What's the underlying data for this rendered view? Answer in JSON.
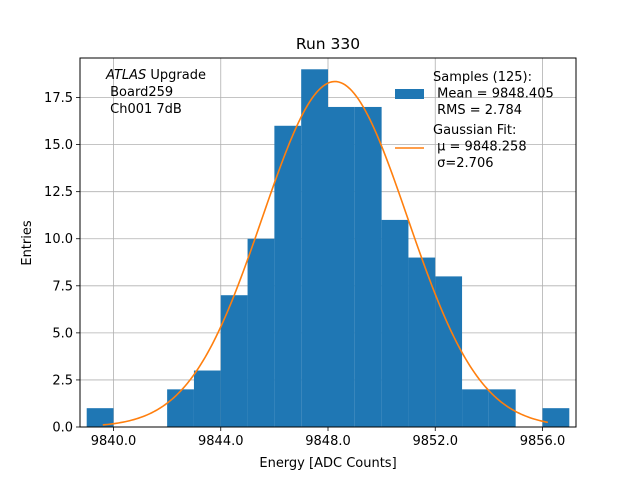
{
  "chart_data": {
    "type": "bar",
    "title": "Run 330",
    "xlabel": "Energy [ADC Counts]",
    "ylabel": "Entries",
    "xlim": [
      9838.75,
      9857.25
    ],
    "ylim": [
      0,
      19.6
    ],
    "xticks": [
      9840.0,
      9844.0,
      9848.0,
      9852.0,
      9856.0
    ],
    "xtick_labels": [
      "9840.0",
      "9844.0",
      "9848.0",
      "9852.0",
      "9856.0"
    ],
    "yticks": [
      0,
      2.5,
      5,
      7.5,
      10,
      12.5,
      15,
      17.5
    ],
    "ytick_labels": [
      "0.0",
      "2.5",
      "5.0",
      "7.5",
      "10.0",
      "12.5",
      "15.0",
      "17.5"
    ],
    "grid": true,
    "histogram": {
      "bin_width": 1.0,
      "bins": [
        {
          "x": 9839.0,
          "count": 1
        },
        {
          "x": 9842.0,
          "count": 2
        },
        {
          "x": 9843.0,
          "count": 3
        },
        {
          "x": 9844.0,
          "count": 7
        },
        {
          "x": 9845.0,
          "count": 10
        },
        {
          "x": 9846.0,
          "count": 16
        },
        {
          "x": 9847.0,
          "count": 19
        },
        {
          "x": 9848.0,
          "count": 17
        },
        {
          "x": 9849.0,
          "count": 17
        },
        {
          "x": 9850.0,
          "count": 11
        },
        {
          "x": 9851.0,
          "count": 9
        },
        {
          "x": 9852.0,
          "count": 8
        },
        {
          "x": 9853.0,
          "count": 2
        },
        {
          "x": 9854.0,
          "count": 2
        },
        {
          "x": 9856.0,
          "count": 1
        }
      ]
    },
    "gaussian_fit": {
      "mu": 9848.258,
      "sigma": 2.706,
      "amplitude": 18.35,
      "x_range": [
        9839.6,
        9856.2
      ]
    },
    "colors": {
      "bars": "#1f77b4",
      "fit": "#ff7f0e",
      "grid": "#b0b0b0"
    },
    "legend": {
      "placement": "top-right",
      "samples_label": "Samples (125):\n Mean = 9848.405\n RMS = 2.784",
      "fit_label": "Gaussian Fit:\n μ = 9848.258\n σ=2.706"
    },
    "annotation": {
      "placement": "top-left",
      "line1_italic": "ATLAS",
      "line1_rest": " Upgrade",
      "line2": " Board259",
      "line3": " Ch001 7dB"
    }
  }
}
